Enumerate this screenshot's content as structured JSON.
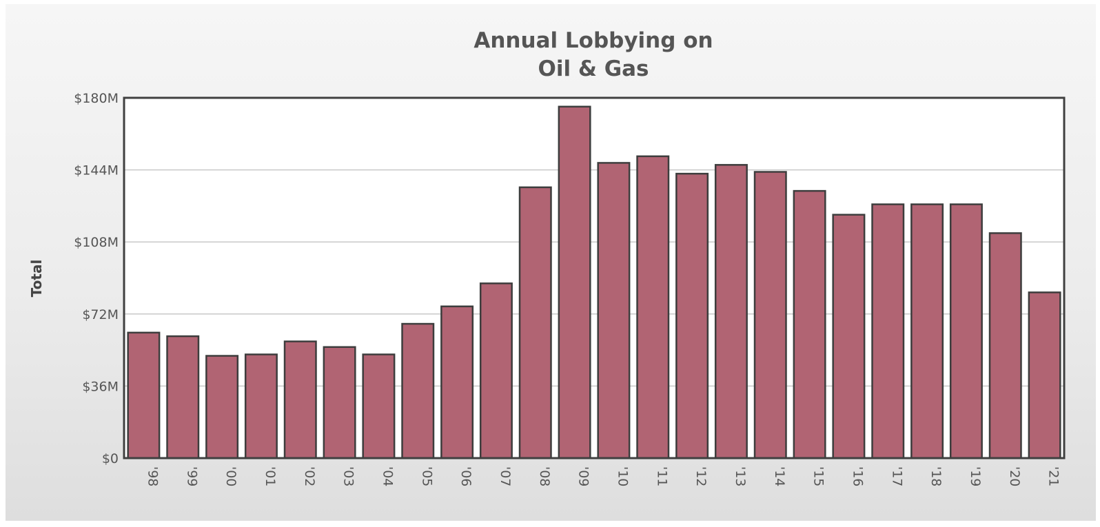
{
  "chart_data": {
    "type": "bar",
    "title": [
      "Annual Lobbying on",
      "Oil & Gas"
    ],
    "ylabel": "Total",
    "xlabel": "",
    "ylim": [
      0,
      180
    ],
    "yticks": [
      0,
      36,
      72,
      108,
      144,
      180
    ],
    "ytick_labels": [
      "$0",
      "$36M",
      "$72M",
      "$108M",
      "$144M",
      "$180M"
    ],
    "categories": [
      "'98",
      "'99",
      "'00",
      "'01",
      "'02",
      "'03",
      "'04",
      "'05",
      "'06",
      "'07",
      "'08",
      "'09",
      "'10",
      "'11",
      "'12",
      "'13",
      "'14",
      "'15",
      "'16",
      "'17",
      "'18",
      "'19",
      "'20",
      "'21"
    ],
    "values": [
      62.7,
      60.9,
      51.1,
      51.8,
      58.3,
      55.5,
      51.8,
      67.1,
      75.8,
      87.3,
      135.3,
      175.6,
      147.5,
      150.8,
      142.1,
      146.5,
      143.0,
      133.5,
      121.6,
      126.8,
      126.8,
      126.8,
      112.4,
      82.8
    ],
    "grid": true,
    "legend": "none",
    "bar_color": "#b16473"
  }
}
